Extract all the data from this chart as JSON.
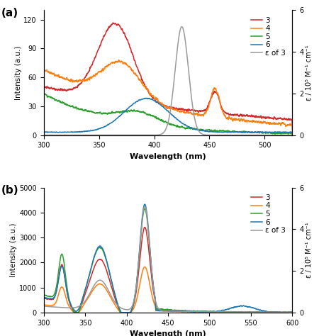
{
  "panel_a": {
    "title": "(a)",
    "xlabel": "Wavelength (nm)",
    "ylabel_left": "Intensity (a.u.)",
    "ylabel_right": "ε / 10⁵ M⁻¹ cm⁻¹",
    "xlim": [
      300,
      525
    ],
    "ylim_left": [
      0,
      130
    ],
    "ylim_right": [
      0,
      6
    ],
    "xticks": [
      300,
      350,
      400,
      450,
      500
    ],
    "yticks_left": [
      0,
      30,
      60,
      90,
      120
    ],
    "yticks_right": [
      0,
      2,
      4,
      6
    ],
    "legend_labels": [
      "3",
      "4",
      "5",
      "6",
      "ε of 3"
    ],
    "colors": [
      "#d62728",
      "#ff7f0e",
      "#2ca02c",
      "#1f77b4",
      "#999999"
    ]
  },
  "panel_b": {
    "title": "(b)",
    "xlabel": "Wavelength (nm)",
    "ylabel_left": "Intensity (a.u.)",
    "ylabel_right": "ε / 10⁵ M⁻¹ cm⁻¹",
    "xlim": [
      300,
      600
    ],
    "ylim_left": [
      0,
      5000
    ],
    "ylim_right": [
      0,
      6
    ],
    "xticks": [
      300,
      350,
      400,
      450,
      500,
      550,
      600
    ],
    "yticks_left": [
      0,
      1000,
      2000,
      3000,
      4000,
      5000
    ],
    "yticks_right": [
      0,
      2,
      4,
      6
    ],
    "legend_labels": [
      "3",
      "4",
      "5",
      "6",
      "ε of 3"
    ],
    "colors": [
      "#d62728",
      "#ff7f0e",
      "#2ca02c",
      "#1f77b4",
      "#999999"
    ]
  }
}
